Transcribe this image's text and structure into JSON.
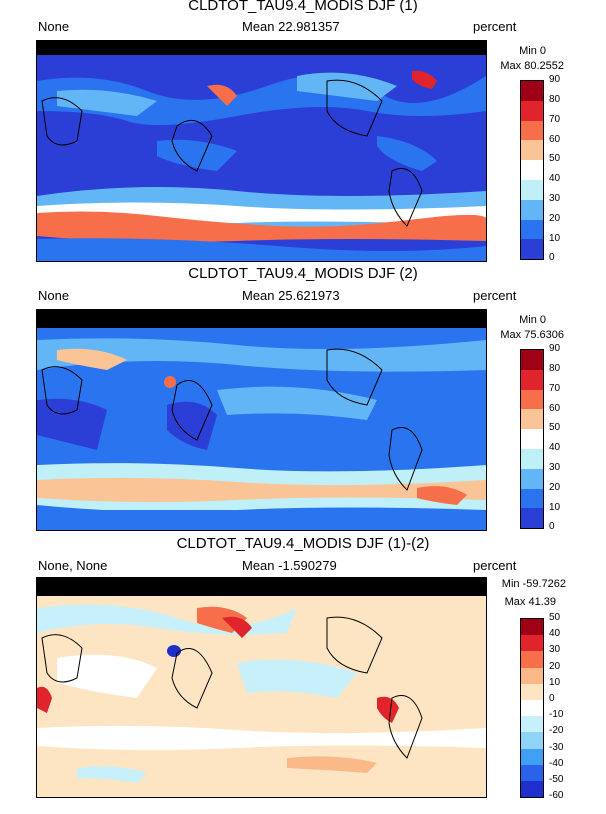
{
  "panels": [
    {
      "title": "CLDTOT_TAU9.4_MODIS DJF (1)",
      "left_label": "None",
      "mean_label": "Mean 22.981357",
      "units": "percent",
      "min_label": "Min 0",
      "max_label": "Max 80.2552",
      "ticks": [
        "90",
        "80",
        "70",
        "60",
        "50",
        "40",
        "30",
        "20",
        "10",
        "0"
      ],
      "colors": [
        "#9e0016",
        "#e0242b",
        "#f66e4a",
        "#fbc497",
        "#ffffff",
        "#bff0f8",
        "#63b6f5",
        "#2a74ef",
        "#2b3fd6"
      ]
    },
    {
      "title": "CLDTOT_TAU9.4_MODIS DJF (2)",
      "left_label": "None",
      "mean_label": "Mean 25.621973",
      "units": "percent",
      "min_label": "Min 0",
      "max_label": "Max 75.6306",
      "ticks": [
        "90",
        "80",
        "70",
        "60",
        "50",
        "40",
        "30",
        "20",
        "10",
        "0"
      ],
      "colors": [
        "#9e0016",
        "#e0242b",
        "#f66e4a",
        "#fbc497",
        "#ffffff",
        "#bff0f8",
        "#63b6f5",
        "#2a74ef",
        "#2b3fd6"
      ]
    },
    {
      "title": "CLDTOT_TAU9.4_MODIS DJF (1)-(2)",
      "left_label": "None, None",
      "mean_label": "Mean -1.590279",
      "units": "percent",
      "min_label": "Min -59.7262",
      "max_label": "Max 41.39",
      "ticks": [
        "50",
        "40",
        "30",
        "20",
        "10",
        "0",
        "-10",
        "-20",
        "-30",
        "-40",
        "-50",
        "-60"
      ],
      "colors": [
        "#9e0016",
        "#e0242b",
        "#f66e4a",
        "#fbb98a",
        "#fde5c4",
        "#ffffff",
        "#c8f0fb",
        "#8fd3f7",
        "#3fa0f3",
        "#2a63e8",
        "#1f2fcc"
      ]
    }
  ]
}
